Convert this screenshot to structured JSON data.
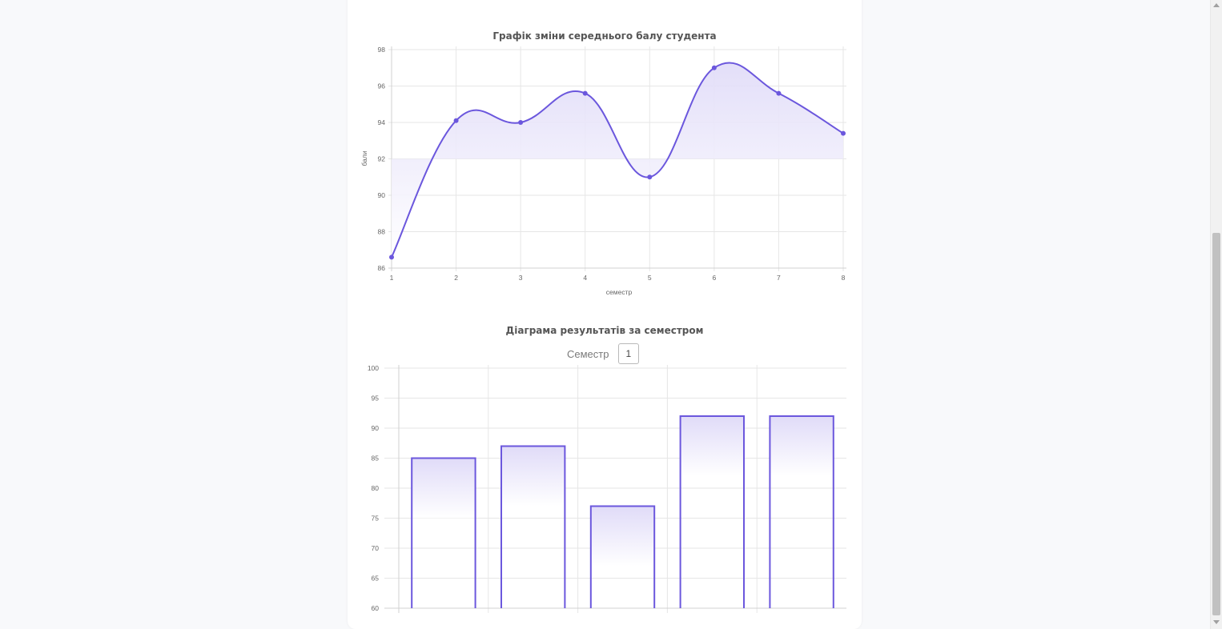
{
  "colors": {
    "accent": "#6b57dd",
    "fill_top": "#e0dbf8",
    "fill_bottom": "#ffffff"
  },
  "chart_data": [
    {
      "type": "line",
      "title": "Графік зміни середнього балу студента",
      "xlabel": "семестр",
      "ylabel": "бали",
      "x": [
        1,
        2,
        3,
        4,
        5,
        6,
        7,
        8
      ],
      "series": [
        {
          "values": [
            86.6,
            94.1,
            94.0,
            95.6,
            91.0,
            97.0,
            95.6,
            93.4
          ]
        }
      ],
      "ylim": [
        86,
        98
      ],
      "yticks": [
        98,
        96,
        94,
        92,
        90,
        88,
        86
      ],
      "xticks": [
        "1",
        "2",
        "3",
        "4",
        "5",
        "6",
        "7",
        "8"
      ],
      "grid": true,
      "smooth": true,
      "area_fill": true
    },
    {
      "type": "bar",
      "title": "Діаграма результатів за семестром",
      "categories": [
        "",
        "",
        "",
        "",
        ""
      ],
      "values": [
        85,
        87,
        77,
        92,
        92
      ],
      "ylim": [
        60,
        100
      ],
      "yticks": [
        100,
        95,
        90,
        85,
        80,
        75,
        70,
        65,
        60
      ],
      "grid": true
    }
  ],
  "semester_picker": {
    "label": "Семестр",
    "value": "1"
  },
  "icons": {
    "scroll_up": "scroll-up-arrow-icon",
    "scroll_down": "scroll-down-arrow-icon"
  }
}
